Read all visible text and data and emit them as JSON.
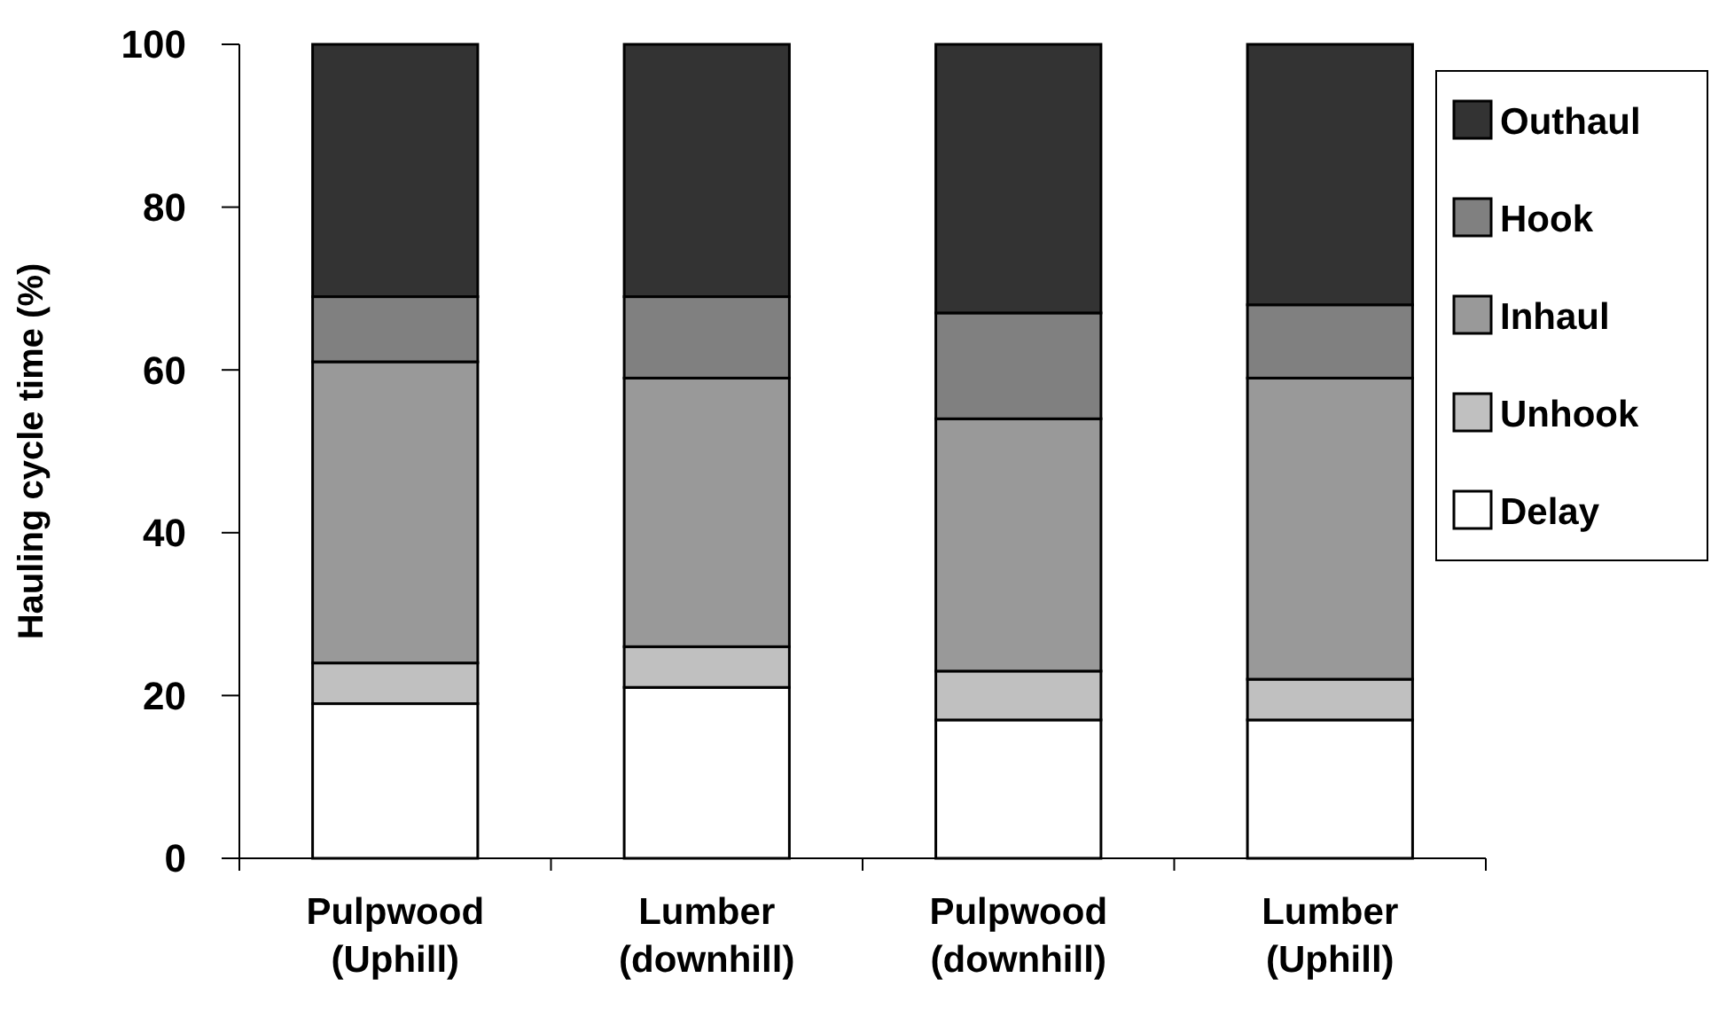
{
  "chart_data": {
    "type": "bar",
    "stacked": true,
    "ylabel": "Hauling cycle time (%)",
    "categories": [
      "Pulpwood\n(Uphill)",
      "Lumber\n(downhill)",
      "Pulpwood\n(downhill)",
      "Lumber\n(Uphill)"
    ],
    "series": [
      {
        "name": "Delay",
        "color": "#ffffff",
        "values": [
          19,
          21,
          17,
          17
        ]
      },
      {
        "name": "Unhook",
        "color": "#c0c0c0",
        "values": [
          5,
          5,
          6,
          5
        ]
      },
      {
        "name": "Inhaul",
        "color": "#999999",
        "values": [
          37,
          33,
          31,
          37
        ]
      },
      {
        "name": "Hook",
        "color": "#808080",
        "values": [
          8,
          10,
          13,
          9
        ]
      },
      {
        "name": "Outhaul",
        "color": "#333333",
        "values": [
          31,
          31,
          33,
          32
        ]
      }
    ],
    "ylim": [
      0,
      100
    ],
    "yticks": [
      0,
      20,
      40,
      60,
      80,
      100
    ],
    "legend": "right",
    "grid": false
  }
}
